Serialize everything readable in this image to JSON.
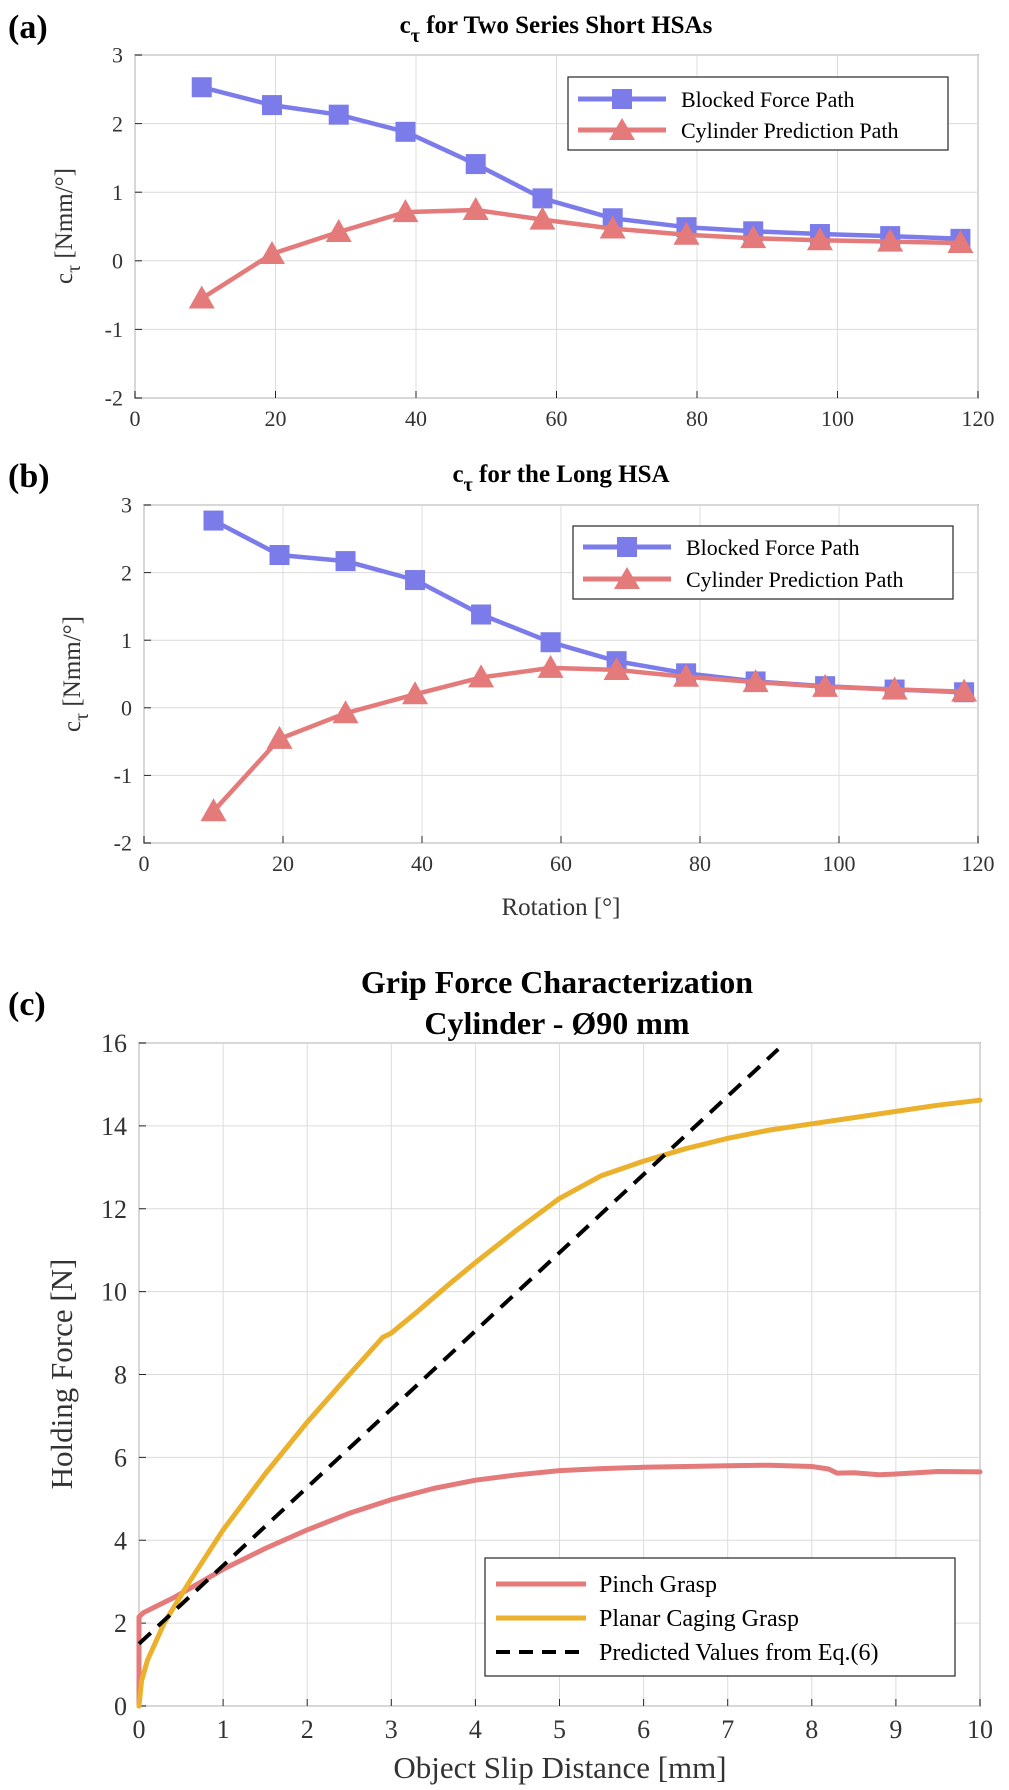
{
  "chart_data": [
    {
      "id": "a",
      "type": "line",
      "panel_label": "(a)",
      "title_symbol": "c",
      "title_subscript": "τ",
      "title_rest": " for Two Series Short HSAs",
      "ylabel_symbol": "c",
      "ylabel_subscript": "τ",
      "ylabel_rest": " [Nmm/°]",
      "xlabel": "",
      "xlim": [
        0,
        120
      ],
      "ylim": [
        -2,
        3
      ],
      "xticks": [
        0,
        20,
        40,
        60,
        80,
        100,
        120
      ],
      "yticks": [
        -2,
        -1,
        0,
        1,
        2,
        3
      ],
      "grid": true,
      "legend_position": "top-right",
      "series": [
        {
          "name": "Blocked Force Path",
          "color": "#7b7bea",
          "marker": "square",
          "x": [
            9.5,
            19.5,
            29,
            38.5,
            48.5,
            58,
            68,
            78.5,
            88,
            97.5,
            107.5,
            117.5
          ],
          "y": [
            2.53,
            2.27,
            2.13,
            1.88,
            1.41,
            0.91,
            0.62,
            0.49,
            0.43,
            0.39,
            0.36,
            0.32
          ]
        },
        {
          "name": "Cylinder Prediction Path",
          "color": "#e47a7a",
          "marker": "triangle",
          "x": [
            9.5,
            19.5,
            29,
            38.5,
            48.5,
            58,
            68,
            78.5,
            88,
            97.5,
            107.5,
            117.5
          ],
          "y": [
            -0.55,
            0.1,
            0.42,
            0.71,
            0.74,
            0.6,
            0.47,
            0.38,
            0.33,
            0.3,
            0.28,
            0.26
          ]
        }
      ]
    },
    {
      "id": "b",
      "type": "line",
      "panel_label": "(b)",
      "title_symbol": "c",
      "title_subscript": "τ",
      "title_rest": " for the Long HSA",
      "ylabel_symbol": "c",
      "ylabel_subscript": "τ",
      "ylabel_rest": " [Nmm/°]",
      "xlabel": "Rotation [°]",
      "xlim": [
        0,
        120
      ],
      "ylim": [
        -2,
        3
      ],
      "xticks": [
        0,
        20,
        40,
        60,
        80,
        100,
        120
      ],
      "yticks": [
        -2,
        -1,
        0,
        1,
        2,
        3
      ],
      "grid": true,
      "legend_position": "top-right",
      "series": [
        {
          "name": "Blocked Force Path",
          "color": "#7b7bea",
          "marker": "square",
          "x": [
            10,
            19.5,
            29,
            39,
            48.5,
            58.5,
            68,
            78,
            88,
            98,
            108,
            118
          ],
          "y": [
            2.77,
            2.26,
            2.17,
            1.89,
            1.38,
            0.97,
            0.69,
            0.51,
            0.39,
            0.32,
            0.27,
            0.23
          ]
        },
        {
          "name": "Cylinder Prediction Path",
          "color": "#e47a7a",
          "marker": "triangle",
          "x": [
            10,
            19.5,
            29,
            39,
            48.5,
            58.5,
            68,
            78,
            88,
            98,
            108,
            118
          ],
          "y": [
            -1.53,
            -0.46,
            -0.08,
            0.2,
            0.45,
            0.59,
            0.56,
            0.46,
            0.38,
            0.31,
            0.27,
            0.24
          ]
        }
      ]
    },
    {
      "id": "c",
      "type": "line",
      "panel_label": "(c)",
      "title": "Grip Force Characterization",
      "subtitle": "Cylinder - Ø90 mm",
      "xlabel": "Object Slip Distance [mm]",
      "ylabel": "Holding Force [N]",
      "xlim": [
        0,
        10
      ],
      "ylim": [
        0,
        16
      ],
      "xticks": [
        0,
        1,
        2,
        3,
        4,
        5,
        6,
        7,
        8,
        9,
        10
      ],
      "yticks": [
        0,
        2,
        4,
        6,
        8,
        10,
        12,
        14,
        16
      ],
      "grid": true,
      "legend_position": "bottom-right",
      "series": [
        {
          "name": "Pinch Grasp",
          "color": "#e47a7a",
          "style": "solid",
          "x": [
            0,
            0,
            0.05,
            0.2,
            0.4,
            0.7,
            1,
            1.5,
            2,
            2.5,
            3,
            3.5,
            4,
            4.5,
            5,
            5.5,
            6,
            6.5,
            7,
            7.5,
            8,
            8.2,
            8.3,
            8.5,
            8.8,
            9,
            9.5,
            10
          ],
          "y": [
            0,
            2.15,
            2.25,
            2.4,
            2.6,
            2.95,
            3.3,
            3.8,
            4.25,
            4.65,
            4.98,
            5.25,
            5.45,
            5.58,
            5.68,
            5.73,
            5.76,
            5.78,
            5.8,
            5.81,
            5.78,
            5.72,
            5.62,
            5.63,
            5.58,
            5.6,
            5.66,
            5.65
          ]
        },
        {
          "name": "Planar Caging Grasp",
          "color": "#ebb12c",
          "style": "solid",
          "x": [
            0,
            0.03,
            0.1,
            0.3,
            0.6,
            1,
            1.5,
            2,
            2.5,
            2.9,
            3,
            3.3,
            3.7,
            4,
            4.5,
            5,
            5.5,
            6,
            6.5,
            7,
            7.5,
            8,
            8.5,
            9,
            9.5,
            10
          ],
          "y": [
            0,
            0.6,
            1.1,
            2,
            3,
            4.25,
            5.6,
            6.85,
            8.0,
            8.9,
            9.0,
            9.5,
            10.2,
            10.7,
            11.5,
            12.25,
            12.8,
            13.15,
            13.45,
            13.7,
            13.9,
            14.05,
            14.2,
            14.35,
            14.5,
            14.62
          ]
        },
        {
          "name": "Predicted Values from Eq.(6)",
          "color": "#000000",
          "style": "dashed",
          "x": [
            0,
            7.6
          ],
          "y": [
            1.5,
            15.85
          ]
        }
      ]
    }
  ]
}
